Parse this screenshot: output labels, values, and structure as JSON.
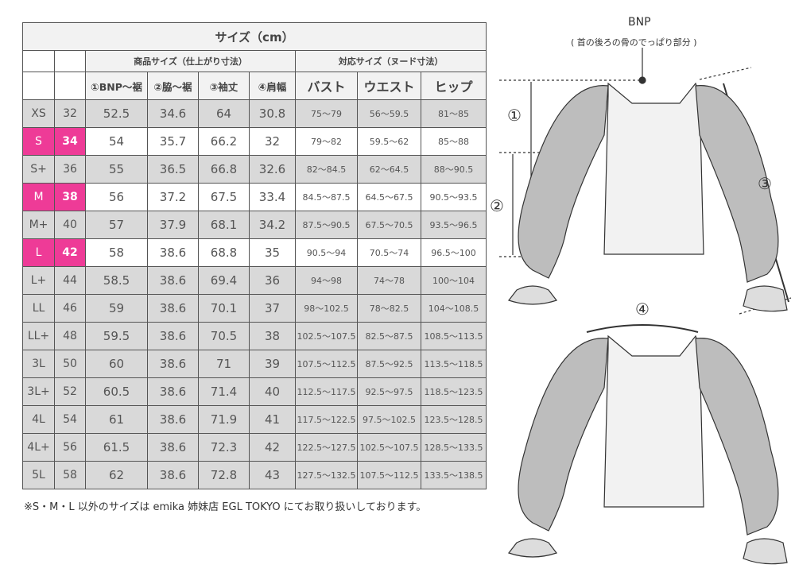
{
  "title": "サイズ（cm）",
  "groups": {
    "product": "商品サイズ（仕上がり寸法）",
    "nude": "対応サイズ（ヌード寸法）"
  },
  "headers": [
    "①BNP～裾",
    "②脇～裾",
    "③袖丈",
    "④肩幅",
    "バスト",
    "ウエスト",
    "ヒップ"
  ],
  "highlight_color": "#ee3b97",
  "rows": [
    [
      "XS",
      "32",
      "52.5",
      "34.6",
      "64",
      "30.8",
      "75～79",
      "56～59.5",
      "81～85"
    ],
    [
      "S",
      "34",
      "54",
      "35.7",
      "66.2",
      "32",
      "79～82",
      "59.5～62",
      "85～88"
    ],
    [
      "S+",
      "36",
      "55",
      "36.5",
      "66.8",
      "32.6",
      "82～84.5",
      "62～64.5",
      "88～90.5"
    ],
    [
      "M",
      "38",
      "56",
      "37.2",
      "67.5",
      "33.4",
      "84.5～87.5",
      "64.5～67.5",
      "90.5～93.5"
    ],
    [
      "M+",
      "40",
      "57",
      "37.9",
      "68.1",
      "34.2",
      "87.5～90.5",
      "67.5～70.5",
      "93.5～96.5"
    ],
    [
      "L",
      "42",
      "58",
      "38.6",
      "68.8",
      "35",
      "90.5～94",
      "70.5～74",
      "96.5～100"
    ],
    [
      "L+",
      "44",
      "58.5",
      "38.6",
      "69.4",
      "36",
      "94～98",
      "74～78",
      "100～104"
    ],
    [
      "LL",
      "46",
      "59",
      "38.6",
      "70.1",
      "37",
      "98～102.5",
      "78～82.5",
      "104～108.5"
    ],
    [
      "LL+",
      "48",
      "59.5",
      "38.6",
      "70.5",
      "38",
      "102.5～107.5",
      "82.5～87.5",
      "108.5～113.5"
    ],
    [
      "3L",
      "50",
      "60",
      "38.6",
      "71",
      "39",
      "107.5～112.5",
      "87.5～92.5",
      "113.5～118.5"
    ],
    [
      "3L+",
      "52",
      "60.5",
      "38.6",
      "71.4",
      "40",
      "112.5～117.5",
      "92.5～97.5",
      "118.5～123.5"
    ],
    [
      "4L",
      "54",
      "61",
      "38.6",
      "71.9",
      "41",
      "117.5～122.5",
      "97.5～102.5",
      "123.5～128.5"
    ],
    [
      "4L+",
      "56",
      "61.5",
      "38.6",
      "72.3",
      "42",
      "122.5～127.5",
      "102.5～107.5",
      "128.5～133.5"
    ],
    [
      "5L",
      "58",
      "62",
      "38.6",
      "72.8",
      "43",
      "127.5～132.5",
      "107.5～112.5",
      "133.5～138.5"
    ]
  ],
  "highlighted_sizes": [
    "S",
    "M",
    "L"
  ],
  "note": "※S・M・L 以外のサイズは emika 姉妹店 EGL TOKYO にてお取り扱いしております。",
  "diagram": {
    "bnp": "BNP",
    "bnp_desc": "( 首の後ろの骨のでっぱり部分 )",
    "labels": [
      "①",
      "②",
      "③",
      "④"
    ]
  }
}
